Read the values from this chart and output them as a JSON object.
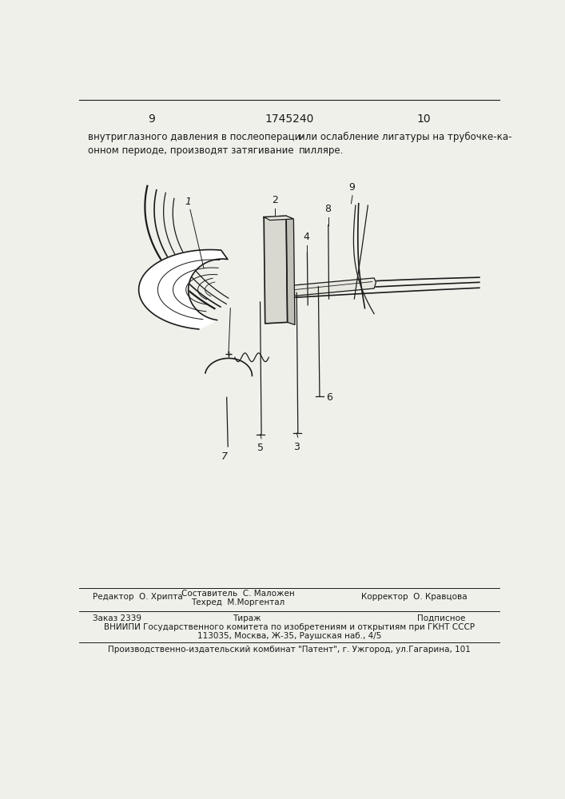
{
  "bg_color": "#f0f0eb",
  "page_num_left": "9",
  "page_num_center": "1745240",
  "page_num_right": "10",
  "header_text_left": "внутриглазного давления в послеопераци-\nонном периоде, производят затягивание",
  "header_text_right": "или ослабление лигатуры на трубочке-ка-\nпилляре.",
  "footer_col1": "Редактор  О. Хрипта",
  "footer_col2_line1": "Составитель  С. Маложен",
  "footer_col2_line2": "Техред  М.Моргентал",
  "footer_col3": "Корректор  О. Кравцова",
  "footer_order": "Заказ 2339",
  "footer_tirazh": "Тираж",
  "footer_podp": "Подписное",
  "footer_vniiipi": "ВНИИПИ Государственного комитета по изобретениям и открытиям при ГКНТ СССР",
  "footer_address": "113035, Москва, Ж-35, Раушская наб., 4/5",
  "footer_bottom": "Производственно-издательский комбинат \"Патент\", г. Ужгород, ул.Гагарина, 101"
}
